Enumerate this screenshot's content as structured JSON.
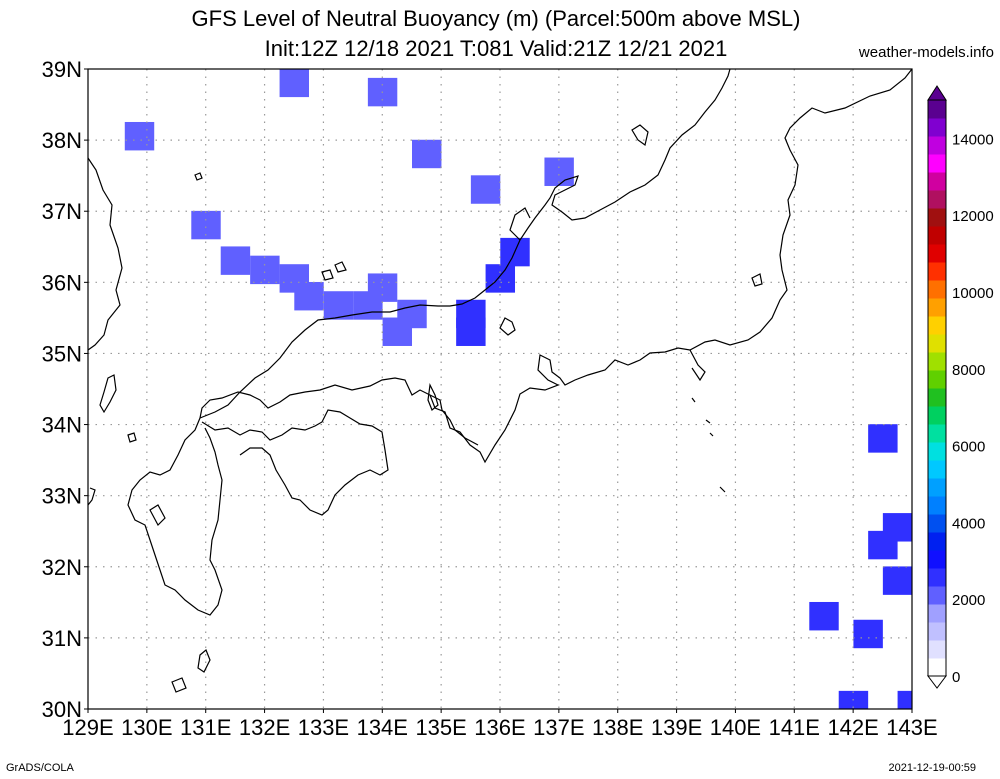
{
  "title": {
    "line1": "GFS Level of Neutral Buoyancy (m) (Parcel:500m above MSL)",
    "line2": "Init:12Z 12/18 2021 T:081 Valid:21Z 12/21 2021"
  },
  "site_label": "weather-models.info",
  "footer": {
    "left": "GrADS/COLA",
    "right": "2021-12-19-00:59"
  },
  "chart_data": {
    "type": "heatmap",
    "title": "GFS Level of Neutral Buoyancy (m) (Parcel:500m above MSL)",
    "lon_range": [
      129,
      143
    ],
    "lat_range": [
      30,
      39
    ],
    "x_tick_labels": [
      "129E",
      "130E",
      "131E",
      "132E",
      "133E",
      "134E",
      "135E",
      "136E",
      "137E",
      "138E",
      "139E",
      "140E",
      "141E",
      "142E",
      "143E"
    ],
    "y_tick_labels": [
      "30N",
      "31N",
      "32N",
      "33N",
      "34N",
      "35N",
      "36N",
      "37N",
      "38N",
      "39N"
    ],
    "grid": true,
    "colorbar": {
      "ticks": [
        "0",
        "2000",
        "4000",
        "6000",
        "8000",
        "10000",
        "12000",
        "14000"
      ],
      "colors": [
        "#ffffff",
        "#e0e0ff",
        "#c0c0ff",
        "#a0a0ff",
        "#6060ff",
        "#3030ff",
        "#1010ff",
        "#0020f0",
        "#0050f0",
        "#0080ff",
        "#00a0ff",
        "#00c8ff",
        "#00e0e0",
        "#00e0a0",
        "#00d060",
        "#20c020",
        "#60d000",
        "#a0e000",
        "#e0e000",
        "#ffd000",
        "#ffa000",
        "#ff7000",
        "#ff3000",
        "#e00000",
        "#c00000",
        "#a01010",
        "#b01060",
        "#d000a0",
        "#ff00ff",
        "#c000e0",
        "#8000d0",
        "#5a0090"
      ]
    },
    "cells": [
      {
        "lon": 129.75,
        "lat": 38.13,
        "value": 2000
      },
      {
        "lon": 130.88,
        "lat": 36.88,
        "value": 1900
      },
      {
        "lon": 132.38,
        "lat": 38.88,
        "value": 1900
      },
      {
        "lon": 133.88,
        "lat": 38.75,
        "value": 1800
      },
      {
        "lon": 134.63,
        "lat": 37.88,
        "value": 1800
      },
      {
        "lon": 135.63,
        "lat": 37.38,
        "value": 1900
      },
      {
        "lon": 136.88,
        "lat": 37.63,
        "value": 1900
      },
      {
        "lon": 131.38,
        "lat": 36.38,
        "value": 1800
      },
      {
        "lon": 131.88,
        "lat": 36.25,
        "value": 1700
      },
      {
        "lon": 132.38,
        "lat": 36.13,
        "value": 1700
      },
      {
        "lon": 132.63,
        "lat": 35.88,
        "value": 1700
      },
      {
        "lon": 133.13,
        "lat": 35.75,
        "value": 1700
      },
      {
        "lon": 133.63,
        "lat": 35.75,
        "value": 1700
      },
      {
        "lon": 133.88,
        "lat": 36.0,
        "value": 1800
      },
      {
        "lon": 134.38,
        "lat": 35.63,
        "value": 1900
      },
      {
        "lon": 134.13,
        "lat": 35.38,
        "value": 2100
      },
      {
        "lon": 135.38,
        "lat": 35.63,
        "value": 2200
      },
      {
        "lon": 135.38,
        "lat": 35.38,
        "value": 2300
      },
      {
        "lon": 135.88,
        "lat": 36.13,
        "value": 2200
      },
      {
        "lon": 136.13,
        "lat": 36.5,
        "value": 2300
      },
      {
        "lon": 142.38,
        "lat": 33.88,
        "value": 2400
      },
      {
        "lon": 142.63,
        "lat": 32.63,
        "value": 2500
      },
      {
        "lon": 142.38,
        "lat": 32.38,
        "value": 2500
      },
      {
        "lon": 142.63,
        "lat": 31.88,
        "value": 2500
      },
      {
        "lon": 141.38,
        "lat": 31.38,
        "value": 2400
      },
      {
        "lon": 142.13,
        "lat": 31.13,
        "value": 2400
      },
      {
        "lon": 141.88,
        "lat": 30.13,
        "value": 2400
      },
      {
        "lon": 142.88,
        "lat": 30.13,
        "value": 2400
      }
    ]
  }
}
